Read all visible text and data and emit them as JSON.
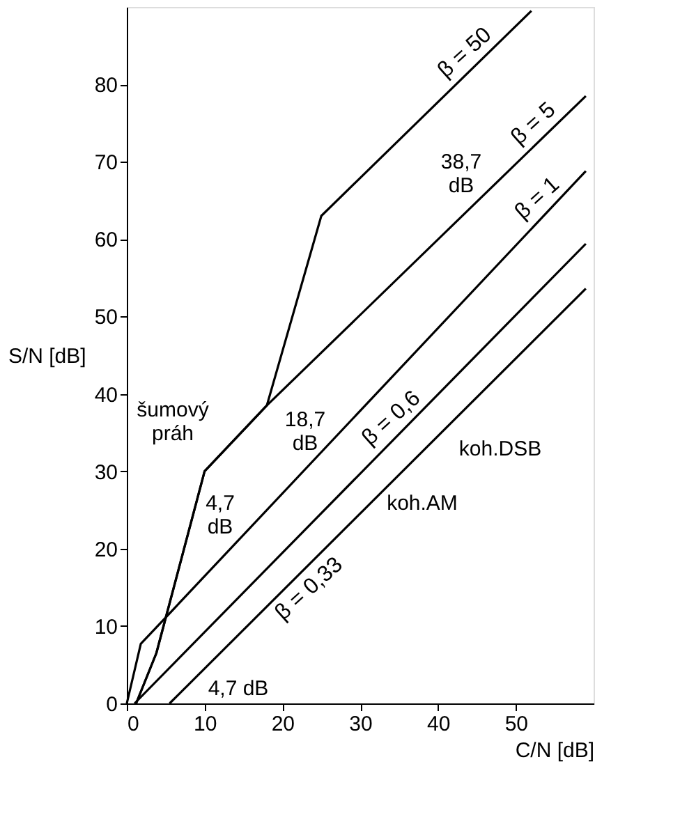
{
  "chart_data": {
    "type": "line",
    "xlabel": "C/N [dB]",
    "ylabel": "S/N [dB]",
    "xlim": [
      0,
      60
    ],
    "ylim": [
      0,
      90
    ],
    "xticks": [
      0,
      10,
      20,
      30,
      40,
      50
    ],
    "yticks": [
      0,
      10,
      20,
      30,
      40,
      50,
      60,
      70,
      80
    ],
    "grid": false,
    "legend": false,
    "marker": "none",
    "line_style": "solid",
    "series": [
      {
        "name": "β = 50",
        "color": "#000000",
        "x": [
          1.2,
          3.8,
          10,
          18,
          25,
          52
        ],
        "values": [
          0,
          6.5,
          30,
          38.5,
          63,
          89.5
        ]
      },
      {
        "name": "β = 5",
        "color": "#000000",
        "x": [
          1.2,
          3.8,
          10,
          18,
          59
        ],
        "values": [
          0,
          6.5,
          30,
          38.5,
          78.5
        ]
      },
      {
        "name": "β = 1",
        "color": "#000000",
        "x": [
          0,
          1.8,
          3.5,
          59
        ],
        "values": [
          0,
          7.7,
          9.5,
          68.8
        ]
      },
      {
        "name": "β = 0,6",
        "color": "#000000",
        "x": [
          1,
          59
        ],
        "values": [
          0,
          59.4
        ]
      },
      {
        "name": "β = 0,33",
        "color": "#000000",
        "x": [
          5.5,
          59
        ],
        "values": [
          0,
          53.6
        ]
      }
    ],
    "annotations": [
      "šumový\npráh",
      "38,7\ndB",
      "18,7\ndB",
      "4,7\ndB",
      "4,7 dB",
      "koh.AM",
      "koh.DSB"
    ]
  }
}
